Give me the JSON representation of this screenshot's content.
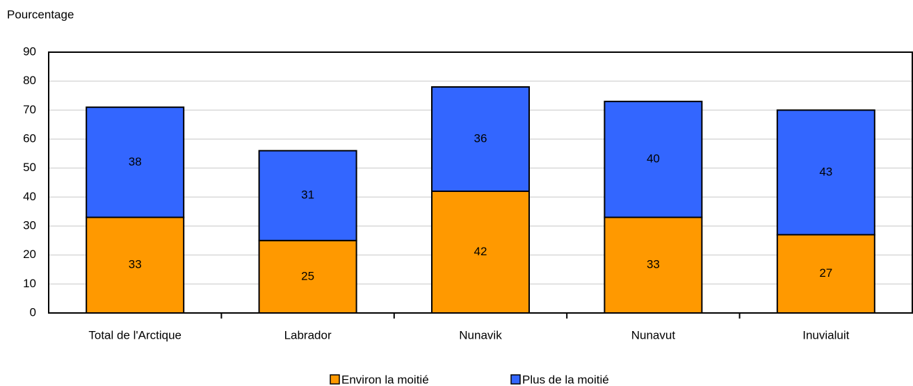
{
  "chart_data": {
    "type": "stacked_bar",
    "y_axis_label": "Pourcentage",
    "categories": [
      "Total de l'Arctique",
      "Labrador",
      "Nunavik",
      "Nunavut",
      "Inuvialuit"
    ],
    "series": [
      {
        "name": "Environ la moitié",
        "color": "#ff9900",
        "values": [
          33,
          25,
          42,
          33,
          27
        ]
      },
      {
        "name": "Plus de la moitié",
        "color": "#3366ff",
        "values": [
          38,
          31,
          36,
          40,
          43
        ]
      }
    ],
    "ylim": [
      0,
      90
    ],
    "yticks": [
      0,
      10,
      20,
      30,
      40,
      50,
      60,
      70,
      80,
      90
    ],
    "grid": true,
    "legend": "bottom"
  }
}
